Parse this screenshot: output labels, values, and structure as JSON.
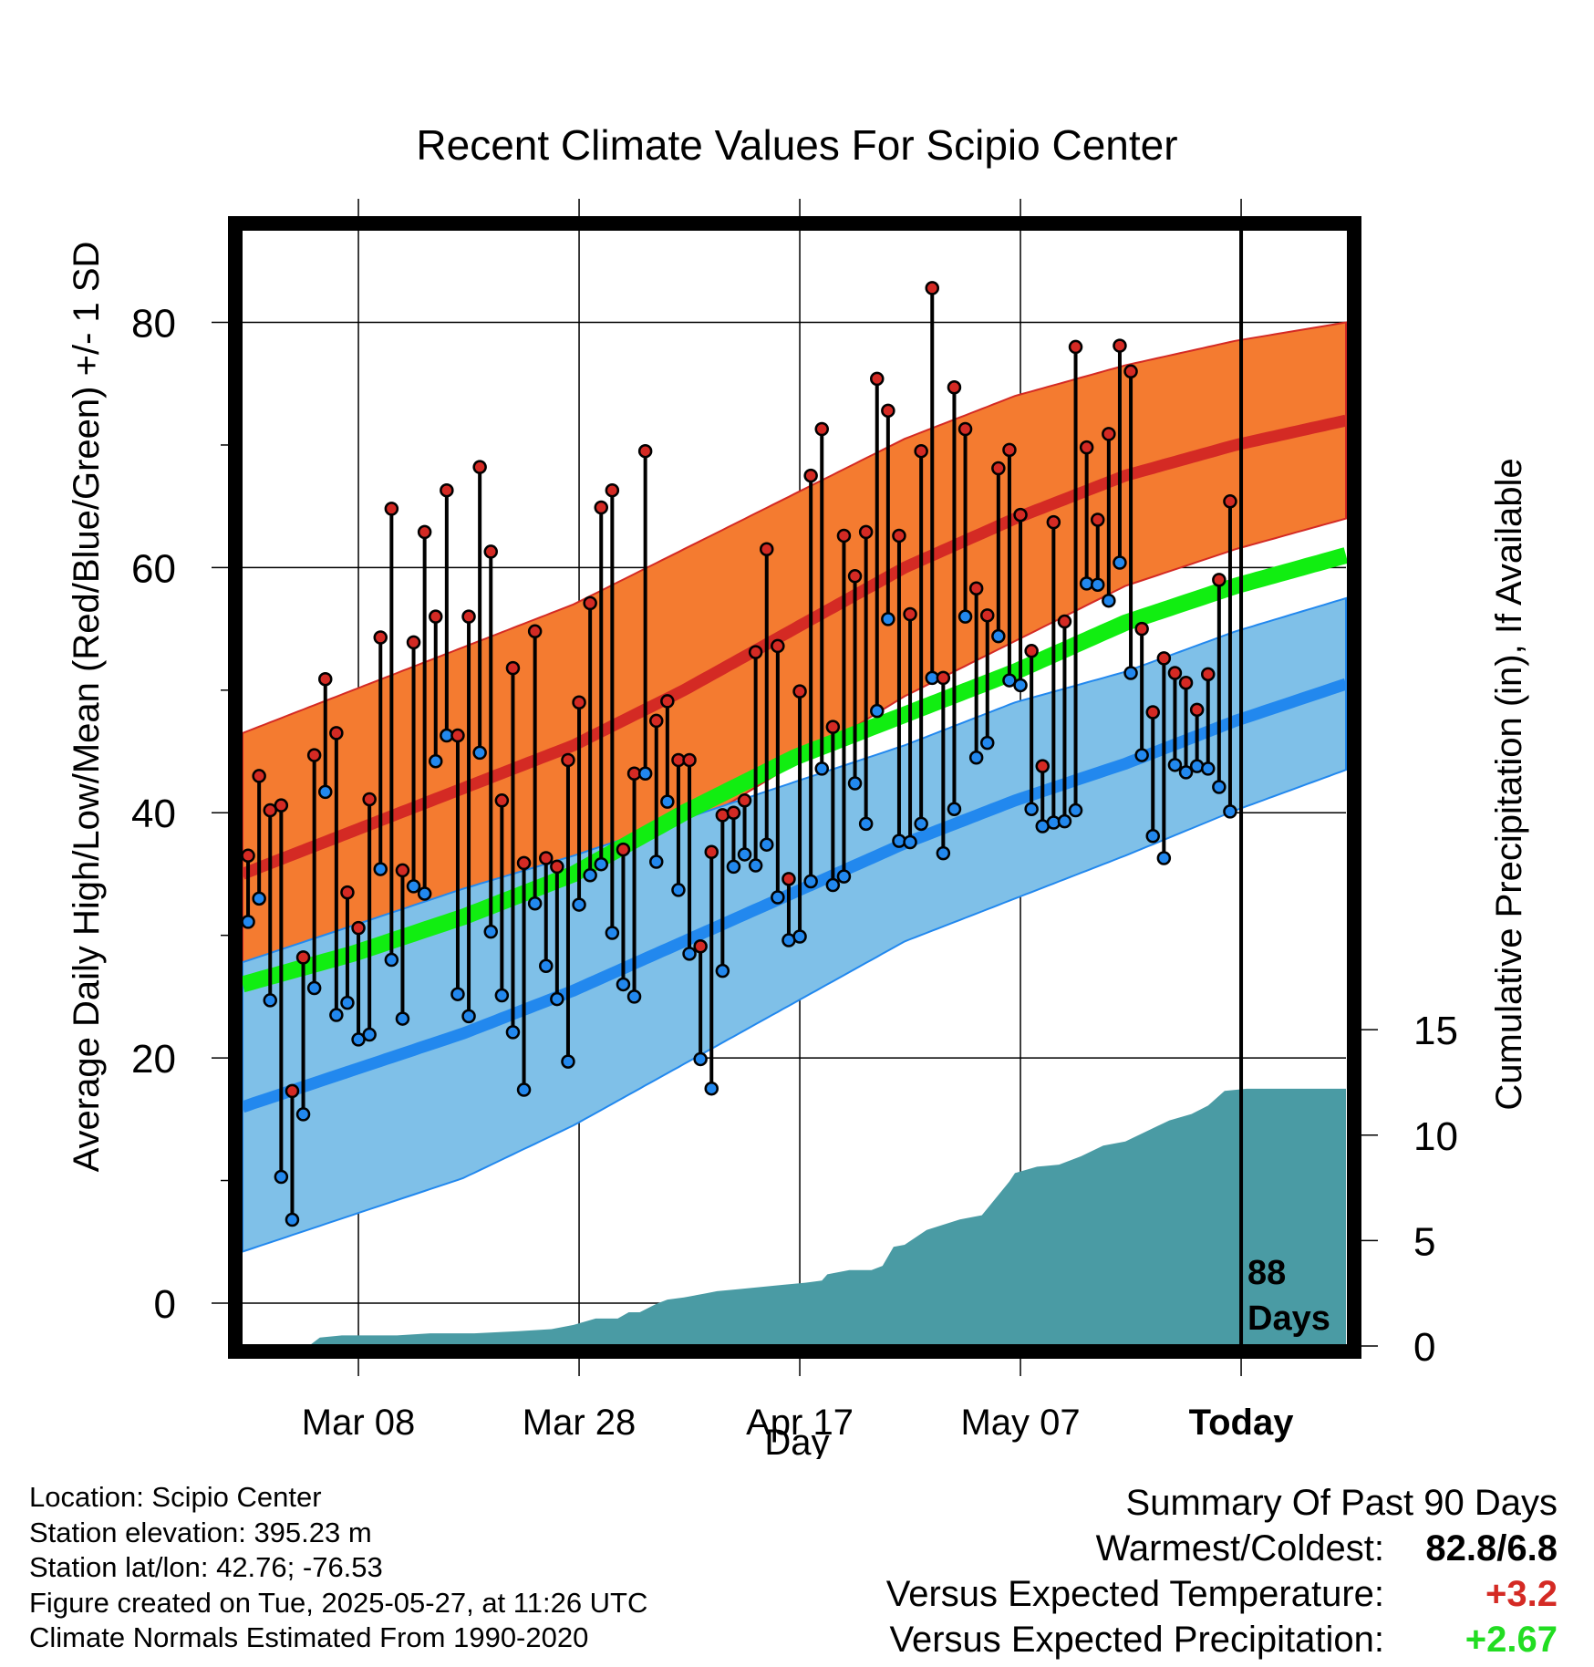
{
  "chart_data": {
    "type": "line",
    "title": "Recent Climate Values For Scipio Center",
    "xlabel": "Day",
    "ylabel": "Average Daily High/Low/Mean (Red/Blue/Green) +/- 1 SD",
    "y2label": "Cumulative Precipitation (in), If Available",
    "x_range_days": [
      0,
      100
    ],
    "ylim": [
      -3.5,
      88
    ],
    "y_ticks": [
      "0",
      "20",
      "40",
      "60",
      "80"
    ],
    "y2lim": [
      0,
      16
    ],
    "y2_ticks": [
      "0",
      "5",
      "10",
      "15"
    ],
    "x_ticks": [
      {
        "day": 10.5,
        "label": "Mar 08"
      },
      {
        "day": 30.5,
        "label": "Mar 28"
      },
      {
        "day": 50.5,
        "label": "Apr 17"
      },
      {
        "day": 70.5,
        "label": "May 07"
      },
      {
        "day": 90.5,
        "label": "Today"
      }
    ],
    "today_day": 90.5,
    "today_label_1": "88",
    "today_label_2": "Days",
    "normals": {
      "days": [
        0,
        10,
        20,
        30,
        40,
        50,
        60,
        70,
        80,
        90,
        100
      ],
      "high_mean": [
        35,
        38.5,
        42,
        45.5,
        50,
        55,
        60,
        64,
        67.5,
        70,
        72
      ],
      "high_sd": [
        11.5,
        11.5,
        11.5,
        11.5,
        11.5,
        11,
        10.5,
        10,
        9,
        8.5,
        8
      ],
      "low_mean": [
        16,
        19,
        22,
        25.5,
        29.5,
        33.5,
        37.5,
        41,
        44,
        47.5,
        50.5
      ],
      "low_sd": [
        11.8,
        11.8,
        11.8,
        11,
        10,
        9,
        8,
        8,
        7.5,
        7.3,
        7
      ],
      "mean": [
        26,
        28.5,
        31.5,
        35,
        40,
        44.5,
        48,
        51.5,
        55.5,
        58.5,
        61
      ]
    },
    "series": [
      {
        "name": "High",
        "values": [
          36.5,
          43,
          40.2,
          40.6,
          17.3,
          28.2,
          44.7,
          50.9,
          46.5,
          33.5,
          30.6,
          41.1,
          54.3,
          64.8,
          35.3,
          53.9,
          62.9,
          56,
          66.3,
          46.3,
          56,
          68.2,
          61.3,
          41,
          51.8,
          35.9,
          54.8,
          36.3,
          35.6,
          44.3,
          49,
          57.1,
          64.9,
          66.3,
          37,
          43.2,
          69.5,
          47.5,
          49.1,
          44.3,
          44.3,
          29.1,
          36.8,
          39.8,
          40,
          41,
          53.1,
          61.5,
          53.6,
          34.6,
          49.9,
          67.5,
          71.3,
          47,
          62.6,
          59.3,
          62.9,
          75.4,
          72.8,
          62.6,
          56.2,
          69.5,
          82.8,
          51,
          74.7,
          71.3,
          58.3,
          56.1,
          68.1,
          69.6,
          64.3,
          53.2,
          43.8,
          63.7,
          55.6,
          78,
          69.8,
          63.9,
          70.9,
          78.1,
          76,
          55,
          48.2,
          52.6,
          51.4,
          50.6,
          48.4,
          51.3,
          59,
          65.4
        ]
      },
      {
        "name": "Low",
        "values": [
          31.1,
          33,
          24.7,
          10.3,
          6.8,
          15.4,
          25.7,
          41.7,
          23.5,
          24.5,
          21.5,
          21.9,
          35.4,
          28,
          23.2,
          34,
          33.4,
          44.2,
          46.3,
          25.2,
          23.4,
          44.9,
          30.3,
          25.1,
          22.1,
          17.4,
          32.6,
          27.5,
          24.8,
          19.7,
          32.5,
          34.9,
          35.8,
          30.2,
          26,
          25,
          43.2,
          36,
          40.9,
          33.7,
          28.5,
          19.9,
          17.5,
          27.1,
          35.6,
          36.6,
          35.7,
          37.4,
          33.1,
          29.6,
          29.9,
          34.4,
          43.6,
          34.1,
          34.8,
          42.4,
          39.1,
          48.3,
          55.8,
          37.7,
          37.6,
          39.1,
          51,
          36.7,
          40.3,
          56,
          44.5,
          45.7,
          54.4,
          50.8,
          50.4,
          40.3,
          38.9,
          39.2,
          39.3,
          40.2,
          58.7,
          58.6,
          57.3,
          60.4,
          51.4,
          44.7,
          38.1,
          36.3,
          43.9,
          43.3,
          43.8,
          43.6,
          42.1,
          40.1
        ]
      },
      {
        "name": "Cumulative Precipitation",
        "days": [
          0,
          6,
          7,
          9,
          14,
          17,
          21,
          25,
          28,
          30,
          32,
          34,
          35,
          36,
          37.5,
          38.5,
          40,
          42,
          43,
          45,
          47,
          49,
          51,
          52.5,
          53,
          55,
          57,
          58,
          59,
          60,
          62,
          65,
          67,
          69.5,
          70,
          72,
          74,
          76,
          78,
          80,
          84,
          86,
          87.5,
          89,
          91,
          100
        ],
        "values": [
          0,
          0,
          0.4,
          0.5,
          0.5,
          0.6,
          0.6,
          0.7,
          0.8,
          1.0,
          1.3,
          1.3,
          1.6,
          1.6,
          2.0,
          2.2,
          2.3,
          2.5,
          2.6,
          2.7,
          2.8,
          2.9,
          3.0,
          3.1,
          3.4,
          3.6,
          3.6,
          3.8,
          4.7,
          4.8,
          5.5,
          6.0,
          6.2,
          7.8,
          8.2,
          8.5,
          8.6,
          9.0,
          9.5,
          9.7,
          10.7,
          11.0,
          11.4,
          12.1,
          12.2,
          12.2
        ]
      }
    ],
    "colors": {
      "high_band": "#f47b30",
      "high_mean": "#d42a24",
      "low_band": "#7fc0e8",
      "low_mean": "#2288ee",
      "mean_line": "#11ee11",
      "precip": "#4a9ba4",
      "high_dot": "#d42a24",
      "low_dot": "#2288ee"
    }
  },
  "footer": {
    "location": "Location: Scipio Center",
    "elevation": "Station elevation: 395.23 m",
    "latlon": "Station lat/lon: 42.76; -76.53",
    "created": "Figure created on Tue, 2025-05-27, at 11:26 UTC",
    "normals": "Climate Normals Estimated From 1990-2020"
  },
  "summary": {
    "title": "Summary Of Past 90 Days",
    "warmest_label": "Warmest/Coldest:",
    "warmest_value": "82.8/6.8",
    "temp_label": "Versus Expected Temperature:",
    "temp_value": "+3.2",
    "temp_color": "#d42a24",
    "precip_label": "Versus Expected Precipitation:",
    "precip_value": "+2.67",
    "precip_color": "#22dd22"
  }
}
